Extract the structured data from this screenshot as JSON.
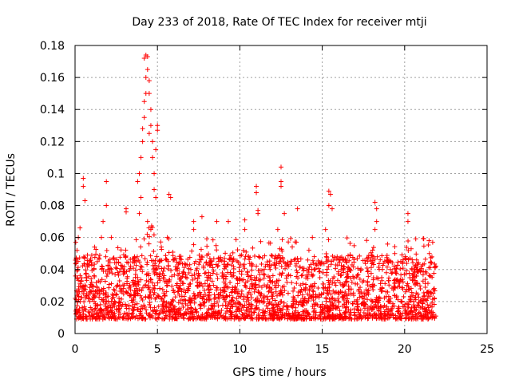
{
  "chart_data": {
    "type": "scatter",
    "title": "Day 233 of 2018, Rate Of TEC Index for receiver mtji",
    "xlabel": "GPS time / hours",
    "ylabel": "ROTI / TECUs",
    "xlim": [
      0,
      25
    ],
    "ylim": [
      0,
      0.18
    ],
    "x_ticks": [
      0,
      5,
      10,
      15,
      20,
      25
    ],
    "x_tick_labels": [
      "0",
      "5",
      "10",
      "15",
      "20",
      "25"
    ],
    "y_ticks": [
      0,
      0.02,
      0.04,
      0.06,
      0.08,
      0.1,
      0.12,
      0.14,
      0.16,
      0.18
    ],
    "y_tick_labels": [
      "0",
      "0.02",
      "0.04",
      "0.06",
      "0.08",
      "0.1",
      "0.12",
      "0.14",
      "0.16",
      "0.18"
    ],
    "grid": true,
    "legend": "none",
    "marker": "plus",
    "series": [
      {
        "name": "ROTI",
        "color": "#ff0000",
        "x_range": [
          0,
          21.9
        ],
        "typical_band": [
          0.005,
          0.045
        ],
        "points": [
          [
            0.5,
            0.097
          ],
          [
            0.5,
            0.092
          ],
          [
            0.6,
            0.083
          ],
          [
            0.3,
            0.066
          ],
          [
            0.2,
            0.06
          ],
          [
            1.9,
            0.095
          ],
          [
            1.9,
            0.08
          ],
          [
            1.7,
            0.07
          ],
          [
            1.6,
            0.06
          ],
          [
            3.1,
            0.078
          ],
          [
            3.1,
            0.076
          ],
          [
            2.2,
            0.06
          ],
          [
            3.8,
            0.095
          ],
          [
            3.9,
            0.1
          ],
          [
            4.0,
            0.11
          ],
          [
            4.1,
            0.12
          ],
          [
            4.1,
            0.128
          ],
          [
            4.2,
            0.135
          ],
          [
            4.2,
            0.145
          ],
          [
            4.3,
            0.15
          ],
          [
            4.3,
            0.16
          ],
          [
            4.2,
            0.172
          ],
          [
            4.3,
            0.174
          ],
          [
            4.4,
            0.173
          ],
          [
            4.4,
            0.165
          ],
          [
            4.5,
            0.158
          ],
          [
            4.5,
            0.15
          ],
          [
            4.6,
            0.14
          ],
          [
            4.6,
            0.13
          ],
          [
            4.5,
            0.125
          ],
          [
            4.7,
            0.12
          ],
          [
            4.7,
            0.11
          ],
          [
            4.8,
            0.1
          ],
          [
            4.8,
            0.09
          ],
          [
            4.9,
            0.085
          ],
          [
            5.0,
            0.13
          ],
          [
            5.0,
            0.127
          ],
          [
            4.9,
            0.115
          ],
          [
            4.0,
            0.085
          ],
          [
            3.9,
            0.075
          ],
          [
            4.4,
            0.07
          ],
          [
            4.6,
            0.065
          ],
          [
            5.7,
            0.087
          ],
          [
            5.8,
            0.085
          ],
          [
            5.6,
            0.06
          ],
          [
            7.2,
            0.07
          ],
          [
            7.2,
            0.065
          ],
          [
            7.7,
            0.073
          ],
          [
            8.6,
            0.07
          ],
          [
            9.3,
            0.07
          ],
          [
            10.3,
            0.071
          ],
          [
            10.3,
            0.065
          ],
          [
            11.0,
            0.092
          ],
          [
            11.0,
            0.088
          ],
          [
            11.1,
            0.077
          ],
          [
            11.1,
            0.075
          ],
          [
            12.5,
            0.104
          ],
          [
            12.5,
            0.095
          ],
          [
            12.5,
            0.092
          ],
          [
            12.7,
            0.075
          ],
          [
            13.5,
            0.078
          ],
          [
            12.3,
            0.065
          ],
          [
            15.4,
            0.089
          ],
          [
            15.4,
            0.08
          ],
          [
            15.5,
            0.087
          ],
          [
            15.6,
            0.078
          ],
          [
            15.2,
            0.065
          ],
          [
            14.4,
            0.06
          ],
          [
            18.2,
            0.082
          ],
          [
            18.3,
            0.078
          ],
          [
            18.3,
            0.07
          ],
          [
            18.2,
            0.065
          ],
          [
            20.2,
            0.075
          ],
          [
            20.2,
            0.07
          ],
          [
            21.7,
            0.057
          ],
          [
            21.5,
            0.05
          ],
          [
            19.4,
            0.05
          ]
        ]
      }
    ]
  }
}
